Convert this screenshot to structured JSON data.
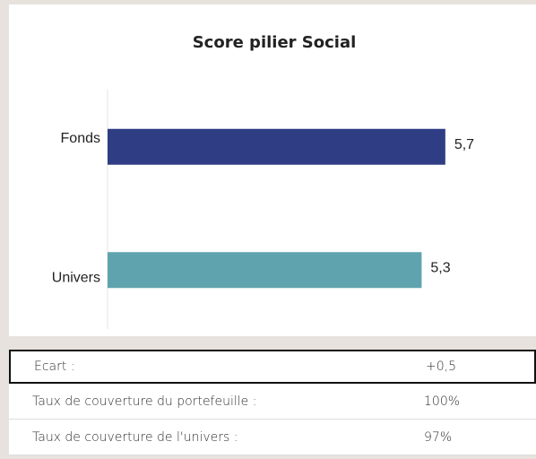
{
  "chart_data": {
    "type": "barh",
    "title": "Score pilier Social",
    "categories": [
      "Fonds",
      "Univers"
    ],
    "values": [
      5.7,
      5.3
    ],
    "value_labels": [
      "5,7",
      "5,3"
    ],
    "colors": [
      "#2f3e84",
      "#5fa3ae"
    ],
    "xlim": [
      0,
      7.2
    ]
  },
  "table": {
    "rows": [
      [
        "Ecart :",
        "+0,5"
      ],
      [
        "Taux de couverture du portefeuille :",
        "100%"
      ],
      [
        "Taux de couverture de l'univers :",
        "97%"
      ]
    ]
  }
}
